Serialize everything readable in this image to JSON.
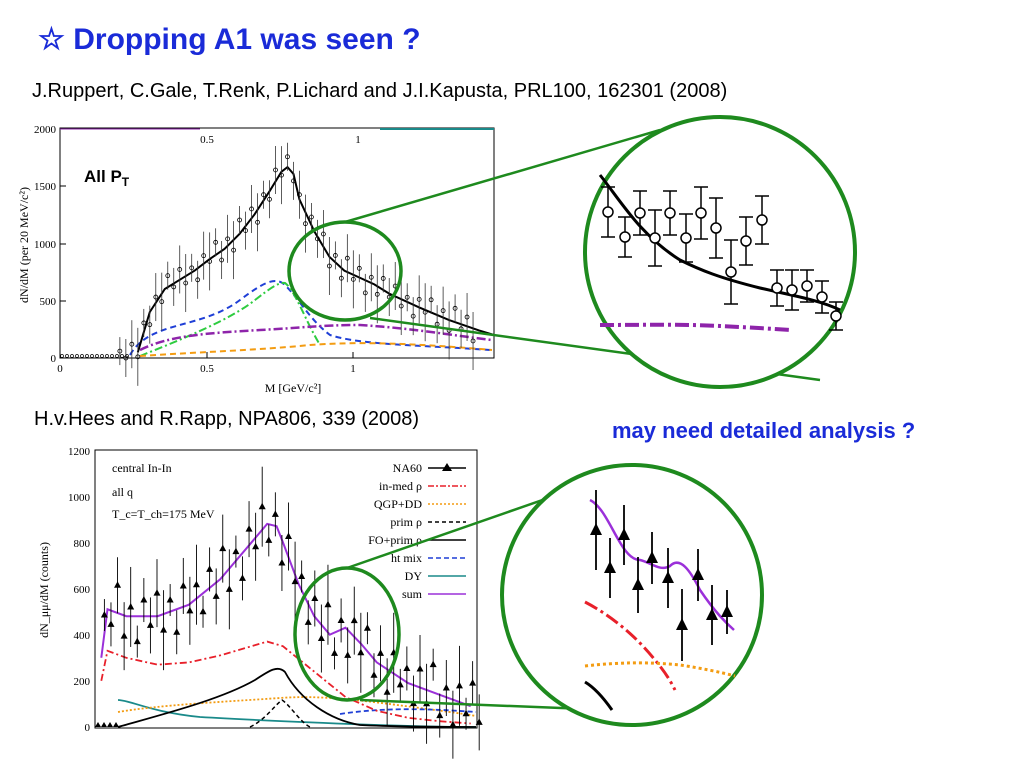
{
  "slide": {
    "title": "☆ Dropping A1 was seen ?",
    "ref_top": "J.Ruppert, C.Gale, T.Renk, P.Lichard and J.I.Kapusta, PRL100, 162301 (2008)",
    "ref_bottom": "H.v.Hees and R.Rapp, NPA806, 339 (2008)",
    "note": "may need detailed analysis ?"
  },
  "plot1": {
    "label_main": "All P",
    "label_sub": "T",
    "ylabel": "dN/dM (per 20 MeV/c²)",
    "xlabel": "M [GeV/c²]",
    "xticks": [
      "0",
      "0.5",
      "1"
    ],
    "xticks_top": [
      "0.5",
      "1"
    ],
    "yticks": [
      "0",
      "500",
      "1000",
      "1500",
      "2000"
    ],
    "colors": {
      "frame": "#000000",
      "circle": "#1e8a1e"
    }
  },
  "plot2": {
    "ylabel": "dN_μμ/dM (counts)",
    "yticks": [
      "0",
      "200",
      "400",
      "600",
      "800",
      "1000",
      "1200"
    ],
    "annot": [
      "central In-In",
      "all q",
      "T_c=T_ch=175 MeV"
    ],
    "legend": [
      "NA60",
      "in-med ρ",
      "QGP+DD",
      "prim ρ",
      "FO+prim ρ",
      "ht mix",
      "DY",
      "sum"
    ],
    "colors": {
      "sum": "#9b30d9",
      "inmed": "#e8202a",
      "qgp": "#f39c12",
      "htmix": "#1f3fd6",
      "dy": "#1a8a8a"
    }
  },
  "chart_data": [
    {
      "type": "line",
      "title": "",
      "xlabel": "M [GeV/c²]",
      "ylabel": "dN/dM (per 20 MeV/c²)",
      "xlim": [
        0,
        1.45
      ],
      "ylim": [
        0,
        2000
      ],
      "series": [
        {
          "name": "",
          "x": [
            0.26,
            0.3,
            0.35,
            0.4,
            0.45,
            0.5,
            0.55,
            0.6,
            0.65,
            0.7,
            0.74,
            0.76,
            0.78,
            0.8,
            0.85,
            0.9,
            0.95,
            1.0,
            1.05,
            1.1,
            1.2,
            1.3,
            1.4,
            1.45
          ],
          "y": [
            50,
            400,
            600,
            680,
            760,
            860,
            950,
            1080,
            1250,
            1450,
            1620,
            1660,
            1600,
            1380,
            1100,
            880,
            760,
            700,
            640,
            560,
            440,
            330,
            240,
            200
          ]
        }
      ]
    },
    {
      "type": "line",
      "title": "",
      "xlabel": "",
      "ylabel": "dN_μμ/dM (counts)",
      "ylim": [
        0,
        1200
      ],
      "series": [
        {
          "name": "sum",
          "x": [
            0.22,
            0.24,
            0.3,
            0.4,
            0.5,
            0.6,
            0.7,
            0.75,
            0.78,
            0.8,
            0.85,
            0.9,
            0.95,
            1.0,
            1.05,
            1.1,
            1.2,
            1.3,
            1.4
          ],
          "y": [
            300,
            510,
            480,
            480,
            530,
            640,
            800,
            880,
            870,
            800,
            620,
            480,
            400,
            430,
            360,
            280,
            190,
            140,
            90
          ]
        },
        {
          "name": "in-med ρ",
          "x": [
            0.22,
            0.24,
            0.3,
            0.4,
            0.5,
            0.6,
            0.7,
            0.75,
            0.8,
            0.9,
            1.0,
            1.1,
            1.2,
            1.3,
            1.4
          ],
          "y": [
            200,
            330,
            300,
            270,
            280,
            310,
            350,
            370,
            350,
            240,
            130,
            70,
            40,
            25,
            15
          ]
        }
      ]
    }
  ]
}
